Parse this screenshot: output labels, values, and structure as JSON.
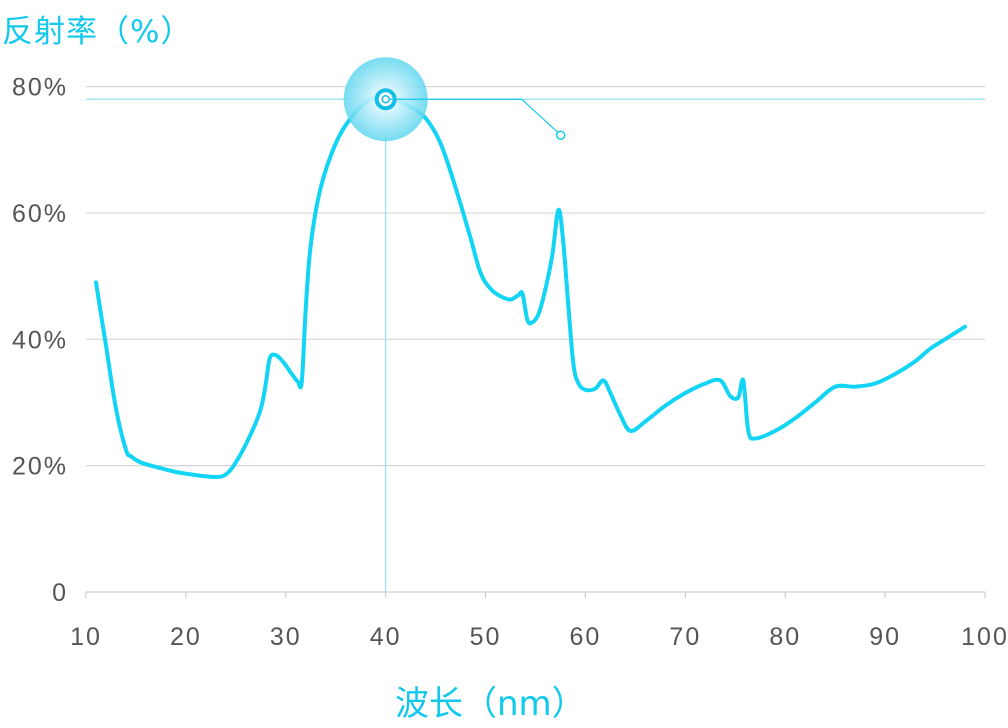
{
  "chart_data": {
    "type": "line",
    "ylabel": "反射率（%）",
    "xlabel": "波长（nm）",
    "x_ticks": [
      "10",
      "20",
      "30",
      "40",
      "50",
      "60",
      "70",
      "80",
      "90",
      "100"
    ],
    "y_ticks": [
      "0",
      "20%",
      "40%",
      "60%",
      "80%"
    ],
    "xlim": [
      10,
      100
    ],
    "ylim": [
      0,
      85
    ],
    "grid": true,
    "series": [
      {
        "color": "#12d4f5",
        "points": [
          [
            11.0,
            49.0
          ],
          [
            12.0,
            39.0
          ],
          [
            13.0,
            29.0
          ],
          [
            14.0,
            22.5
          ],
          [
            14.5,
            21.5
          ],
          [
            15.5,
            20.5
          ],
          [
            17.0,
            19.8
          ],
          [
            19.0,
            19.0
          ],
          [
            21.0,
            18.5
          ],
          [
            23.0,
            18.2
          ],
          [
            24.0,
            18.6
          ],
          [
            25.0,
            20.5
          ],
          [
            26.5,
            25.0
          ],
          [
            27.5,
            29.0
          ],
          [
            28.0,
            33.0
          ],
          [
            28.4,
            37.0
          ],
          [
            29.0,
            37.5
          ],
          [
            29.8,
            36.3
          ],
          [
            30.6,
            34.5
          ],
          [
            31.2,
            33.3
          ],
          [
            31.6,
            33.3
          ],
          [
            32.0,
            45.0
          ],
          [
            32.5,
            55.0
          ],
          [
            33.5,
            64.0
          ],
          [
            35.0,
            71.0
          ],
          [
            36.5,
            75.0
          ],
          [
            38.0,
            77.5
          ],
          [
            39.5,
            78.5
          ],
          [
            41.0,
            77.8
          ],
          [
            42.5,
            76.8
          ],
          [
            44.0,
            75.0
          ],
          [
            45.5,
            71.0
          ],
          [
            47.0,
            64.0
          ],
          [
            48.5,
            56.0
          ],
          [
            49.5,
            50.5
          ],
          [
            50.5,
            48.0
          ],
          [
            51.5,
            46.8
          ],
          [
            52.5,
            46.3
          ],
          [
            53.3,
            47.0
          ],
          [
            53.7,
            47.2
          ],
          [
            54.2,
            43.0
          ],
          [
            54.7,
            42.7
          ],
          [
            55.3,
            44.0
          ],
          [
            56.0,
            48.0
          ],
          [
            56.7,
            53.5
          ],
          [
            57.3,
            60.5
          ],
          [
            57.8,
            55.0
          ],
          [
            58.3,
            45.0
          ],
          [
            58.8,
            36.0
          ],
          [
            59.3,
            33.0
          ],
          [
            60.0,
            32.0
          ],
          [
            61.0,
            32.2
          ],
          [
            61.8,
            33.5
          ],
          [
            62.5,
            31.5
          ],
          [
            63.5,
            28.0
          ],
          [
            64.5,
            25.5
          ],
          [
            66.0,
            27.0
          ],
          [
            68.0,
            29.5
          ],
          [
            70.0,
            31.5
          ],
          [
            72.0,
            33.0
          ],
          [
            73.5,
            33.5
          ],
          [
            74.5,
            31.0
          ],
          [
            75.3,
            30.8
          ],
          [
            75.8,
            33.5
          ],
          [
            76.3,
            25.5
          ],
          [
            77.0,
            24.3
          ],
          [
            79.0,
            25.5
          ],
          [
            81.0,
            27.5
          ],
          [
            83.0,
            30.0
          ],
          [
            85.0,
            32.5
          ],
          [
            87.0,
            32.5
          ],
          [
            89.0,
            33.0
          ],
          [
            91.0,
            34.5
          ],
          [
            93.0,
            36.5
          ],
          [
            94.5,
            38.5
          ],
          [
            96.0,
            40.0
          ],
          [
            98.0,
            42.0
          ]
        ]
      }
    ],
    "highlight": {
      "x": 40,
      "y": 78
    }
  }
}
